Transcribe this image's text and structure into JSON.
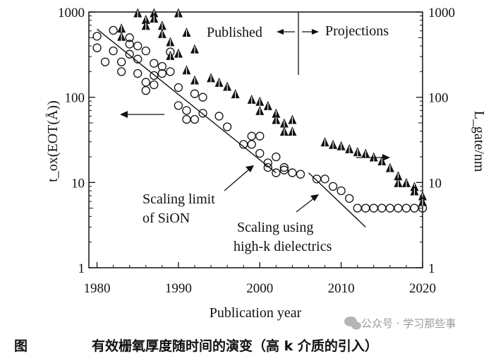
{
  "caption": {
    "label": "图",
    "text": "有效栅氧厚度随时间的演变（高 k 介质的引入）"
  },
  "watermark": "公众号 · 学习那些事",
  "chart_data": {
    "type": "scatter",
    "xlabel": "Publication year",
    "ylabel_left": "t_ox(EOT(Å))",
    "ylabel_right": "L_gate/nm",
    "x_ticks": [
      "1980",
      "1990",
      "2000",
      "2010",
      "2020"
    ],
    "y_ticks": [
      "1",
      "10",
      "100",
      "1000"
    ],
    "xlim": [
      1979,
      2020
    ],
    "ylim": [
      1,
      1000
    ],
    "y_scale": "log",
    "annotations": {
      "published": "Published",
      "projections": "Projections",
      "sion_line1": "Scaling limit",
      "sion_line2": "of SiON",
      "highk_line1": "Scaling using",
      "highk_line2": "high-k dielectrics"
    },
    "series": [
      {
        "marker": "circle",
        "points": [
          [
            1980,
            520
          ],
          [
            1980,
            380
          ],
          [
            1981,
            260
          ],
          [
            1982,
            610
          ],
          [
            1982,
            350
          ],
          [
            1983,
            260
          ],
          [
            1983,
            200
          ],
          [
            1984,
            500
          ],
          [
            1984,
            420
          ],
          [
            1984,
            320
          ],
          [
            1985,
            400
          ],
          [
            1985,
            280
          ],
          [
            1985,
            190
          ],
          [
            1986,
            350
          ],
          [
            1986,
            150
          ],
          [
            1986,
            120
          ],
          [
            1987,
            250
          ],
          [
            1987,
            180
          ],
          [
            1987,
            140
          ],
          [
            1988,
            230
          ],
          [
            1988,
            190
          ],
          [
            1989,
            340
          ],
          [
            1989,
            200
          ],
          [
            1990,
            130
          ],
          [
            1990,
            80
          ],
          [
            1991,
            70
          ],
          [
            1991,
            55
          ],
          [
            1992,
            110
          ],
          [
            1992,
            55
          ],
          [
            1993,
            100
          ],
          [
            1993,
            65
          ],
          [
            1995,
            60
          ],
          [
            1996,
            45
          ],
          [
            1998,
            28
          ],
          [
            1999,
            35
          ],
          [
            1999,
            28
          ],
          [
            2000,
            35
          ],
          [
            2000,
            22
          ],
          [
            2001,
            17
          ],
          [
            2001,
            15
          ],
          [
            2002,
            20
          ],
          [
            2002,
            13
          ],
          [
            2003,
            15
          ],
          [
            2003,
            14
          ],
          [
            2004,
            13
          ],
          [
            2005,
            12.5
          ],
          [
            2007,
            11
          ],
          [
            2008,
            11
          ],
          [
            2009,
            9
          ],
          [
            2010,
            8
          ],
          [
            2011,
            6.5
          ],
          [
            2012,
            5
          ],
          [
            2013,
            5
          ],
          [
            2014,
            5
          ],
          [
            2015,
            5
          ],
          [
            2016,
            5
          ],
          [
            2017,
            5
          ],
          [
            2018,
            5
          ],
          [
            2019,
            5
          ],
          [
            2020,
            5
          ]
        ]
      },
      {
        "marker": "triangle",
        "points": [
          [
            1983,
            650
          ],
          [
            1983,
            520
          ],
          [
            1985,
            980
          ],
          [
            1986,
            820
          ],
          [
            1986,
            700
          ],
          [
            1987,
            980
          ],
          [
            1987,
            850
          ],
          [
            1988,
            700
          ],
          [
            1988,
            560
          ],
          [
            1989,
            450
          ],
          [
            1989,
            310
          ],
          [
            1990,
            980
          ],
          [
            1990,
            330
          ],
          [
            1991,
            580
          ],
          [
            1991,
            210
          ],
          [
            1992,
            370
          ],
          [
            1992,
            160
          ],
          [
            1994,
            170
          ],
          [
            1995,
            150
          ],
          [
            1996,
            135
          ],
          [
            1997,
            110
          ],
          [
            1999,
            95
          ],
          [
            2000,
            90
          ],
          [
            2000,
            70
          ],
          [
            2001,
            80
          ],
          [
            2002,
            65
          ],
          [
            2002,
            55
          ],
          [
            2003,
            50
          ],
          [
            2003,
            40
          ],
          [
            2004,
            55
          ],
          [
            2004,
            40
          ],
          [
            2008,
            30
          ],
          [
            2009,
            28
          ],
          [
            2010,
            27
          ],
          [
            2011,
            25
          ],
          [
            2012,
            23
          ],
          [
            2013,
            22
          ],
          [
            2014,
            20
          ],
          [
            2015,
            18
          ],
          [
            2016,
            15
          ],
          [
            2017,
            12
          ],
          [
            2017,
            10
          ],
          [
            2018,
            10
          ],
          [
            2019,
            9
          ],
          [
            2019,
            8
          ],
          [
            2020,
            7
          ],
          [
            2020,
            6
          ]
        ]
      }
    ],
    "trend_lines": [
      [
        [
          1980,
          630
        ],
        [
          2002,
          13
        ]
      ],
      [
        [
          2006,
          13
        ],
        [
          2013,
          3
        ]
      ]
    ]
  }
}
